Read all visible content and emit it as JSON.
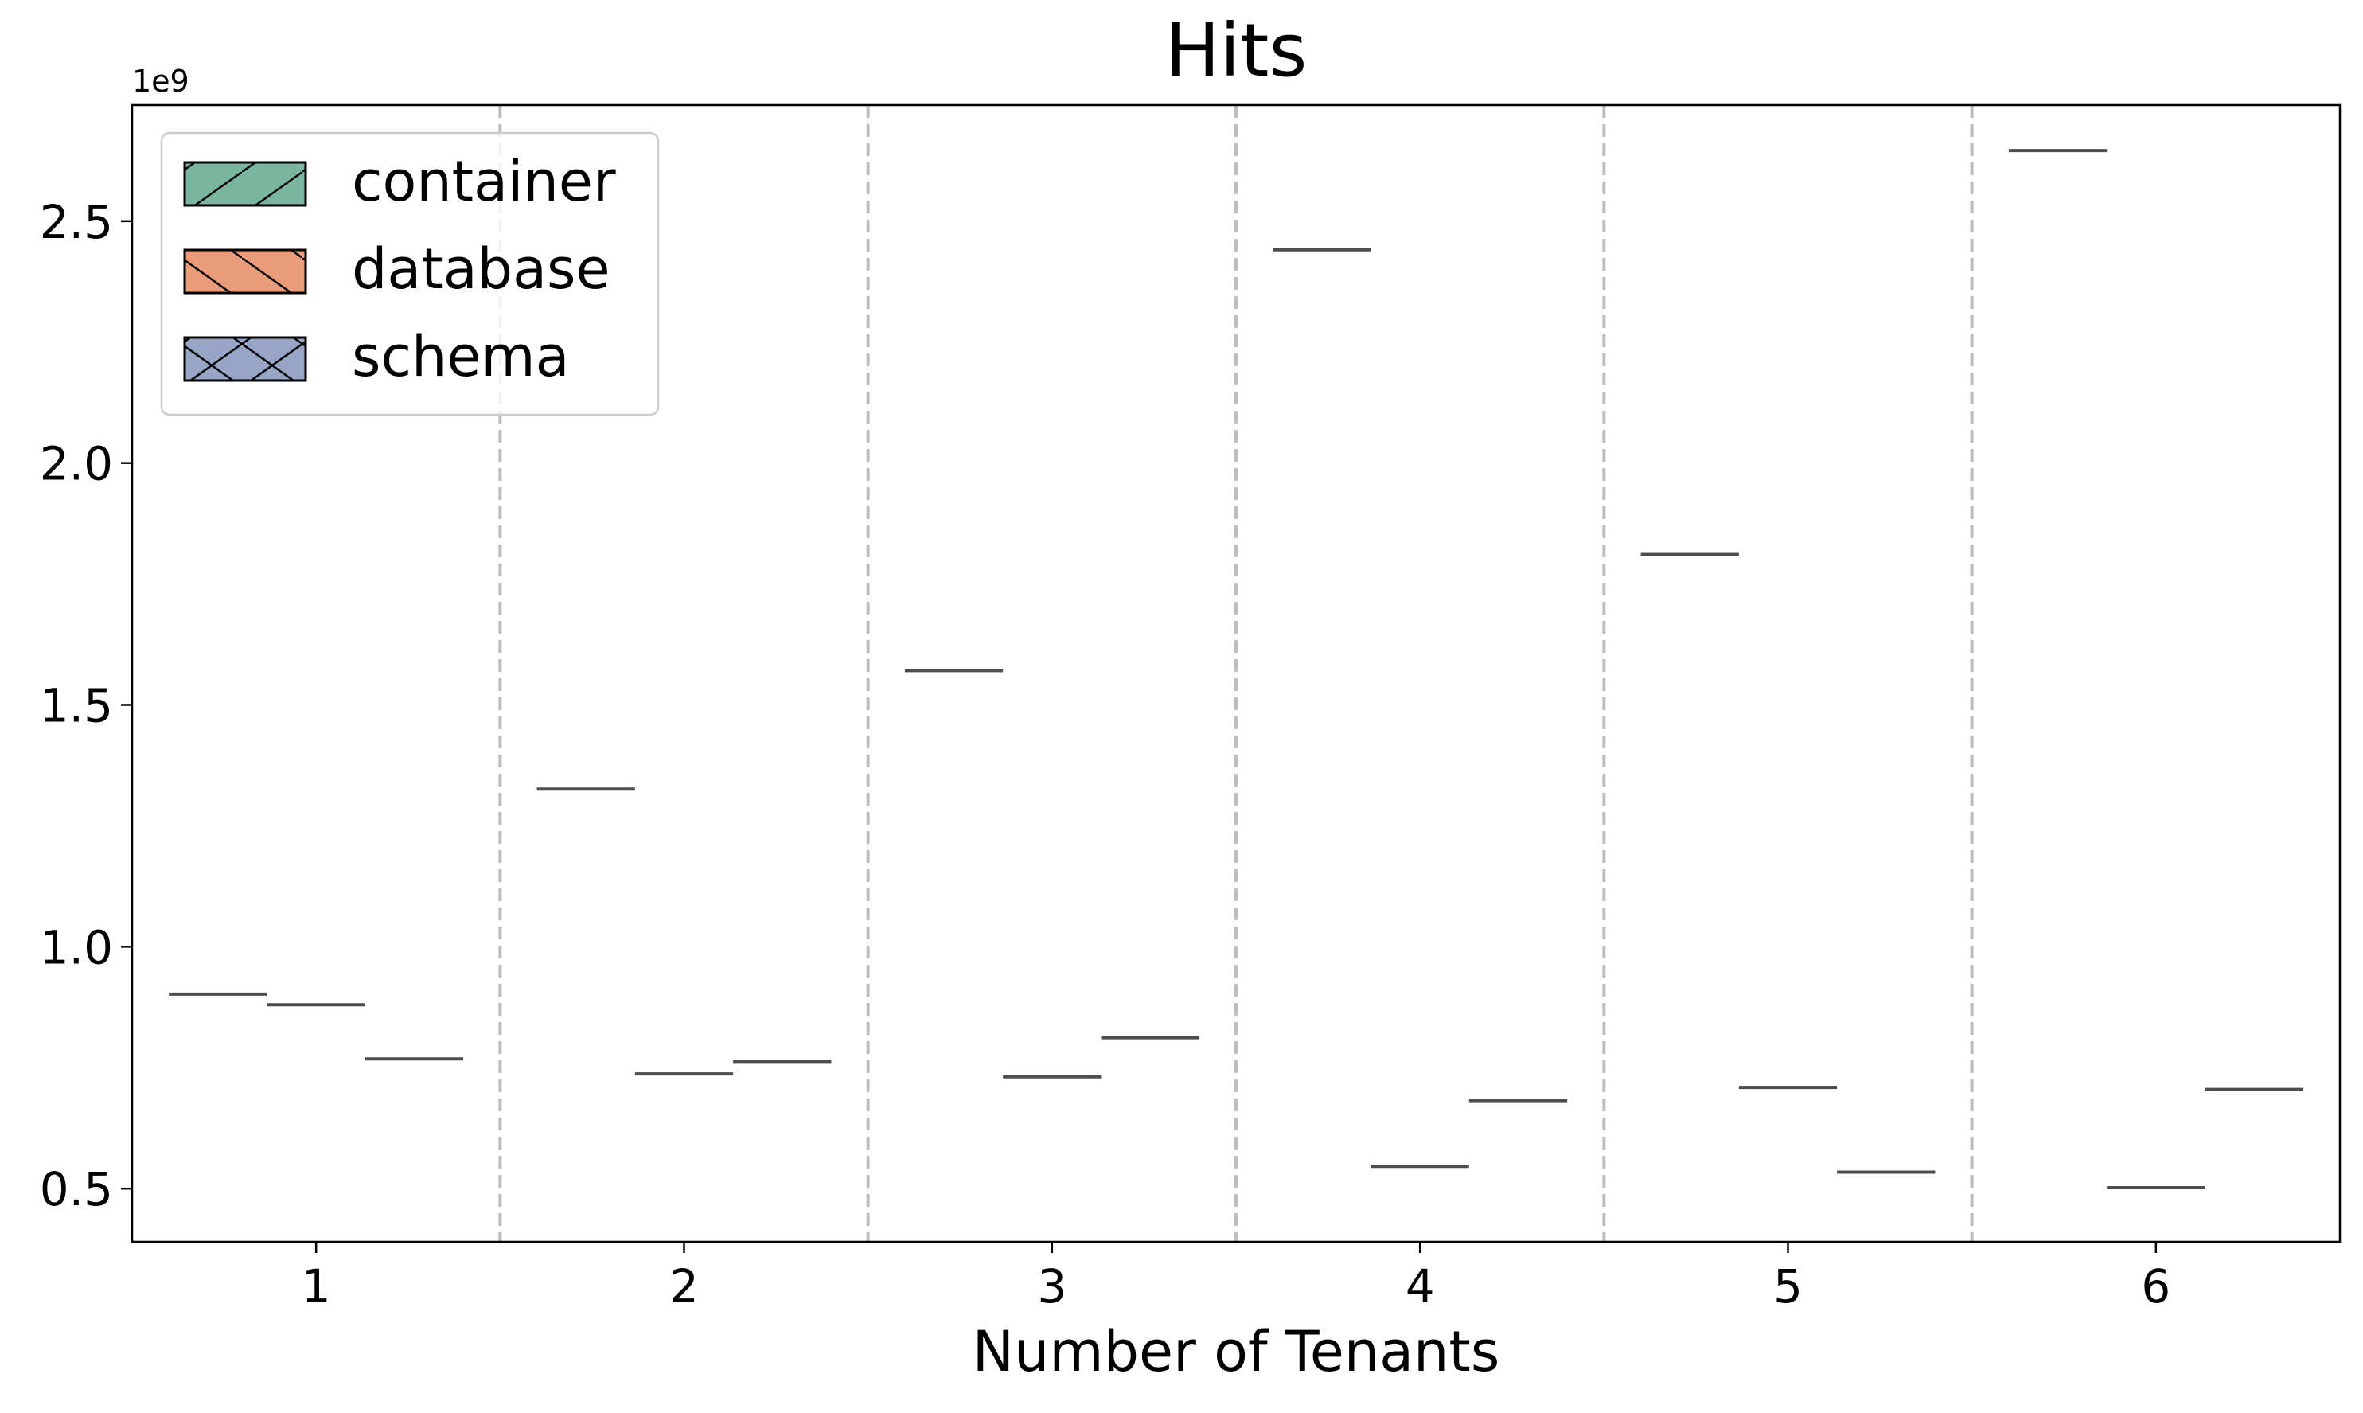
{
  "chart_data": {
    "type": "box",
    "title": "Hits",
    "xlabel": "Number of Tenants",
    "ylabel": "",
    "y_offset_label": "1e9",
    "categories": [
      "1",
      "2",
      "3",
      "4",
      "5",
      "6"
    ],
    "ylim": [
      0.39,
      2.74
    ],
    "yticks": [
      0.5,
      1.0,
      1.5,
      2.0,
      2.5
    ],
    "ytick_labels": [
      "0.5",
      "1.0",
      "1.5",
      "2.0",
      "2.5"
    ],
    "series": [
      {
        "name": "container",
        "color": "#7ab59f",
        "hatch": "forward-diagonal",
        "values": [
          0.902,
          1.326,
          1.571,
          2.441,
          1.811,
          2.646
        ]
      },
      {
        "name": "database",
        "color": "#ea9b7a",
        "hatch": "back-diagonal",
        "values": [
          0.88,
          0.737,
          0.731,
          0.546,
          0.709,
          0.502
        ]
      },
      {
        "name": "schema",
        "color": "#97a6c6",
        "hatch": "cross",
        "values": [
          0.768,
          0.763,
          0.812,
          0.682,
          0.534,
          0.705
        ]
      }
    ],
    "separators": [
      1.5,
      2.5,
      3.5,
      4.5,
      5.5
    ],
    "legend_position": "upper-left",
    "grid": false
  }
}
